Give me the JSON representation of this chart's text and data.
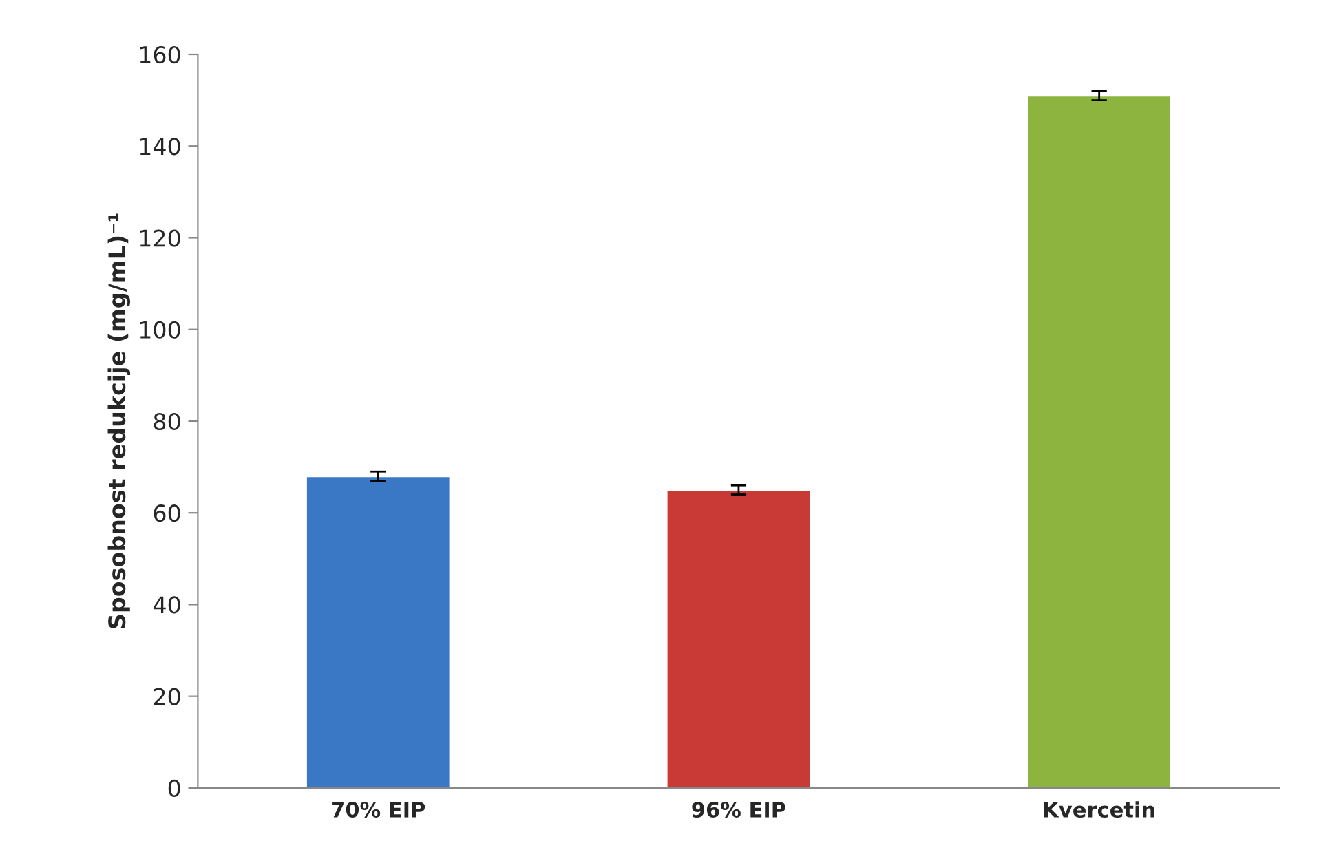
{
  "chart_data": {
    "type": "bar",
    "ylabel": "Sposobnost redukcije (mg/mL)⁻¹",
    "categories": [
      "70% EIP",
      "96% EIP",
      "Kvercetin"
    ],
    "values": [
      68,
      65,
      151
    ],
    "errors": [
      1,
      1,
      1
    ],
    "colors": [
      "#3a78c6",
      "#c93a36",
      "#8cb43f"
    ],
    "ylim": [
      0,
      160
    ],
    "yticks": [
      0,
      20,
      40,
      60,
      80,
      100,
      120,
      140,
      160
    ],
    "grid": false,
    "legend": false
  }
}
